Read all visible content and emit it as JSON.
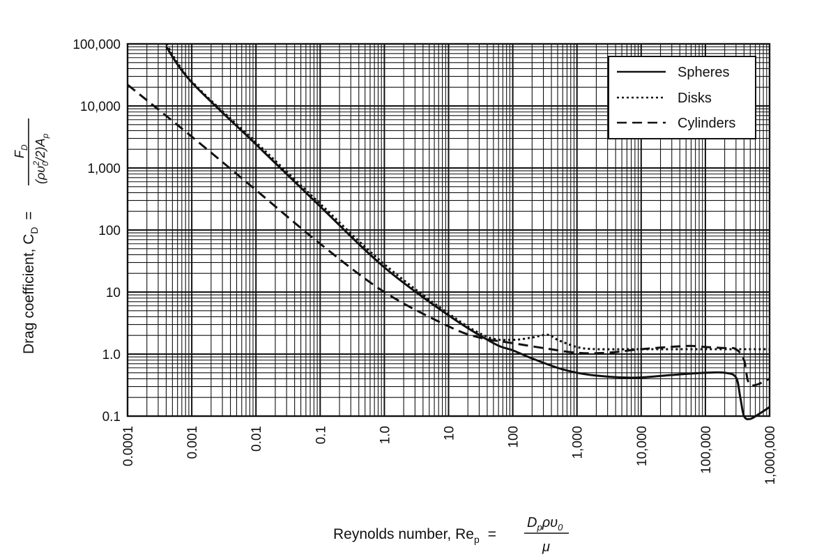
{
  "chart_data": {
    "type": "line",
    "x_scale": "log",
    "y_scale": "log",
    "xlim": [
      0.0001,
      1000000
    ],
    "ylim": [
      0.1,
      100000
    ],
    "grid": true,
    "legend_position": "top-right",
    "x_tick_labels": [
      "0.0001",
      "0.001",
      "0.01",
      "0.1",
      "1.0",
      "10",
      "100",
      "1,000",
      "10,000",
      "100,000",
      "1,000,000"
    ],
    "y_tick_labels": [
      "0.1",
      "1.0",
      "10",
      "100",
      "1,000",
      "10,000",
      "100,000"
    ],
    "xlabel": "Reynolds number, Re",
    "xlabel_sub": "p",
    "xlabel_eq": "=",
    "xlabel_frac_num": "D",
    "xlabel_frac_num_sub": "p",
    "xlabel_frac_num_rest": "ρυ",
    "xlabel_frac_num_sub2": "0",
    "xlabel_frac_den": "μ",
    "ylabel": "Drag coefficient, C",
    "ylabel_sub": "D",
    "ylabel_eq": "=",
    "ylabel_frac_num": "F",
    "ylabel_frac_num_sub": "D",
    "ylabel_frac_den": "(ρυ",
    "ylabel_frac_den_sup": "2",
    "ylabel_frac_den_sub": "0",
    "ylabel_frac_den_rest": "/2)A",
    "ylabel_frac_den_sub2": "p",
    "series": [
      {
        "name": "Spheres",
        "style": "solid",
        "x": [
          0.0004,
          0.001,
          0.01,
          0.1,
          1,
          10,
          50,
          100,
          200,
          500,
          1000,
          2000,
          5000,
          10000,
          30000,
          100000,
          200000,
          300000,
          350000,
          400000,
          500000,
          700000,
          1000000
        ],
        "y": [
          90000,
          24000,
          2400,
          240,
          25,
          4.2,
          1.5,
          1.15,
          0.85,
          0.6,
          0.5,
          0.45,
          0.42,
          0.42,
          0.46,
          0.5,
          0.5,
          0.42,
          0.2,
          0.1,
          0.09,
          0.11,
          0.14
        ]
      },
      {
        "name": "Disks",
        "style": "dotted",
        "x": [
          0.0004,
          0.001,
          0.01,
          0.1,
          1,
          10,
          40,
          100,
          200,
          350,
          500,
          1000,
          2000,
          10000,
          100000,
          1000000
        ],
        "y": [
          100000,
          25000,
          2600,
          265,
          28,
          4.5,
          1.9,
          1.7,
          1.85,
          2.05,
          1.7,
          1.3,
          1.2,
          1.2,
          1.2,
          1.2
        ]
      },
      {
        "name": "Cylinders",
        "style": "dashed",
        "x": [
          0.0001,
          0.001,
          0.01,
          0.1,
          1,
          10,
          30,
          100,
          300,
          1000,
          3000,
          10000,
          50000,
          100000,
          200000,
          300000,
          400000,
          500000,
          1000000
        ],
        "y": [
          22000,
          3200,
          440,
          60,
          10,
          2.8,
          1.85,
          1.5,
          1.25,
          1.05,
          1.05,
          1.2,
          1.35,
          1.3,
          1.25,
          1.2,
          0.8,
          0.32,
          0.4
        ]
      }
    ],
    "colors": {
      "line": "#111111",
      "grid": "#111111",
      "background": "#ffffff"
    }
  }
}
